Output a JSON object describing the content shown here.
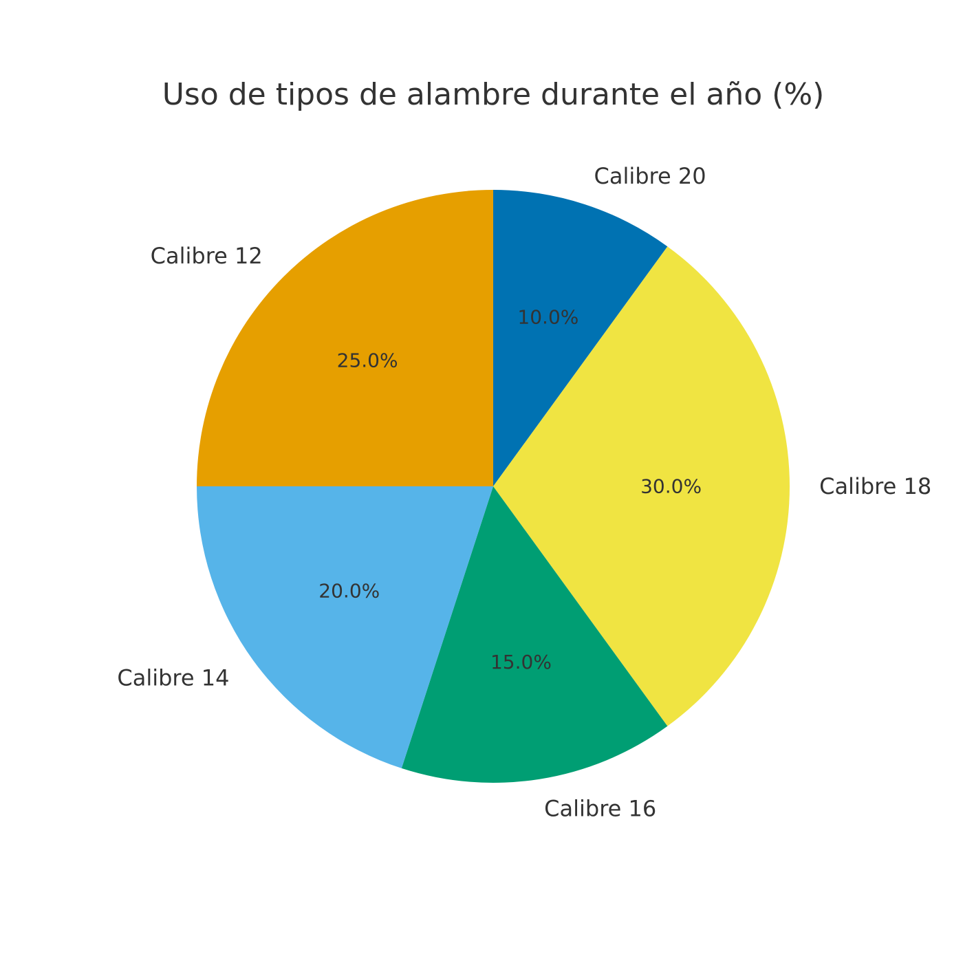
{
  "chart_data": {
    "type": "pie",
    "title": "Uso de tipos de alambre durante el año (%)",
    "categories": [
      "Calibre 20",
      "Calibre 18",
      "Calibre 16",
      "Calibre 14",
      "Calibre 12"
    ],
    "values": [
      10,
      30,
      15,
      20,
      25
    ],
    "percent_labels": [
      "10.0%",
      "30.0%",
      "15.0%",
      "20.0%",
      "25.0%"
    ],
    "colors": [
      "#0072B2",
      "#F0E442",
      "#009E73",
      "#56B4E9",
      "#E69F00"
    ],
    "start_angle": "12 o'clock",
    "direction": "clockwise",
    "legend": "none"
  }
}
